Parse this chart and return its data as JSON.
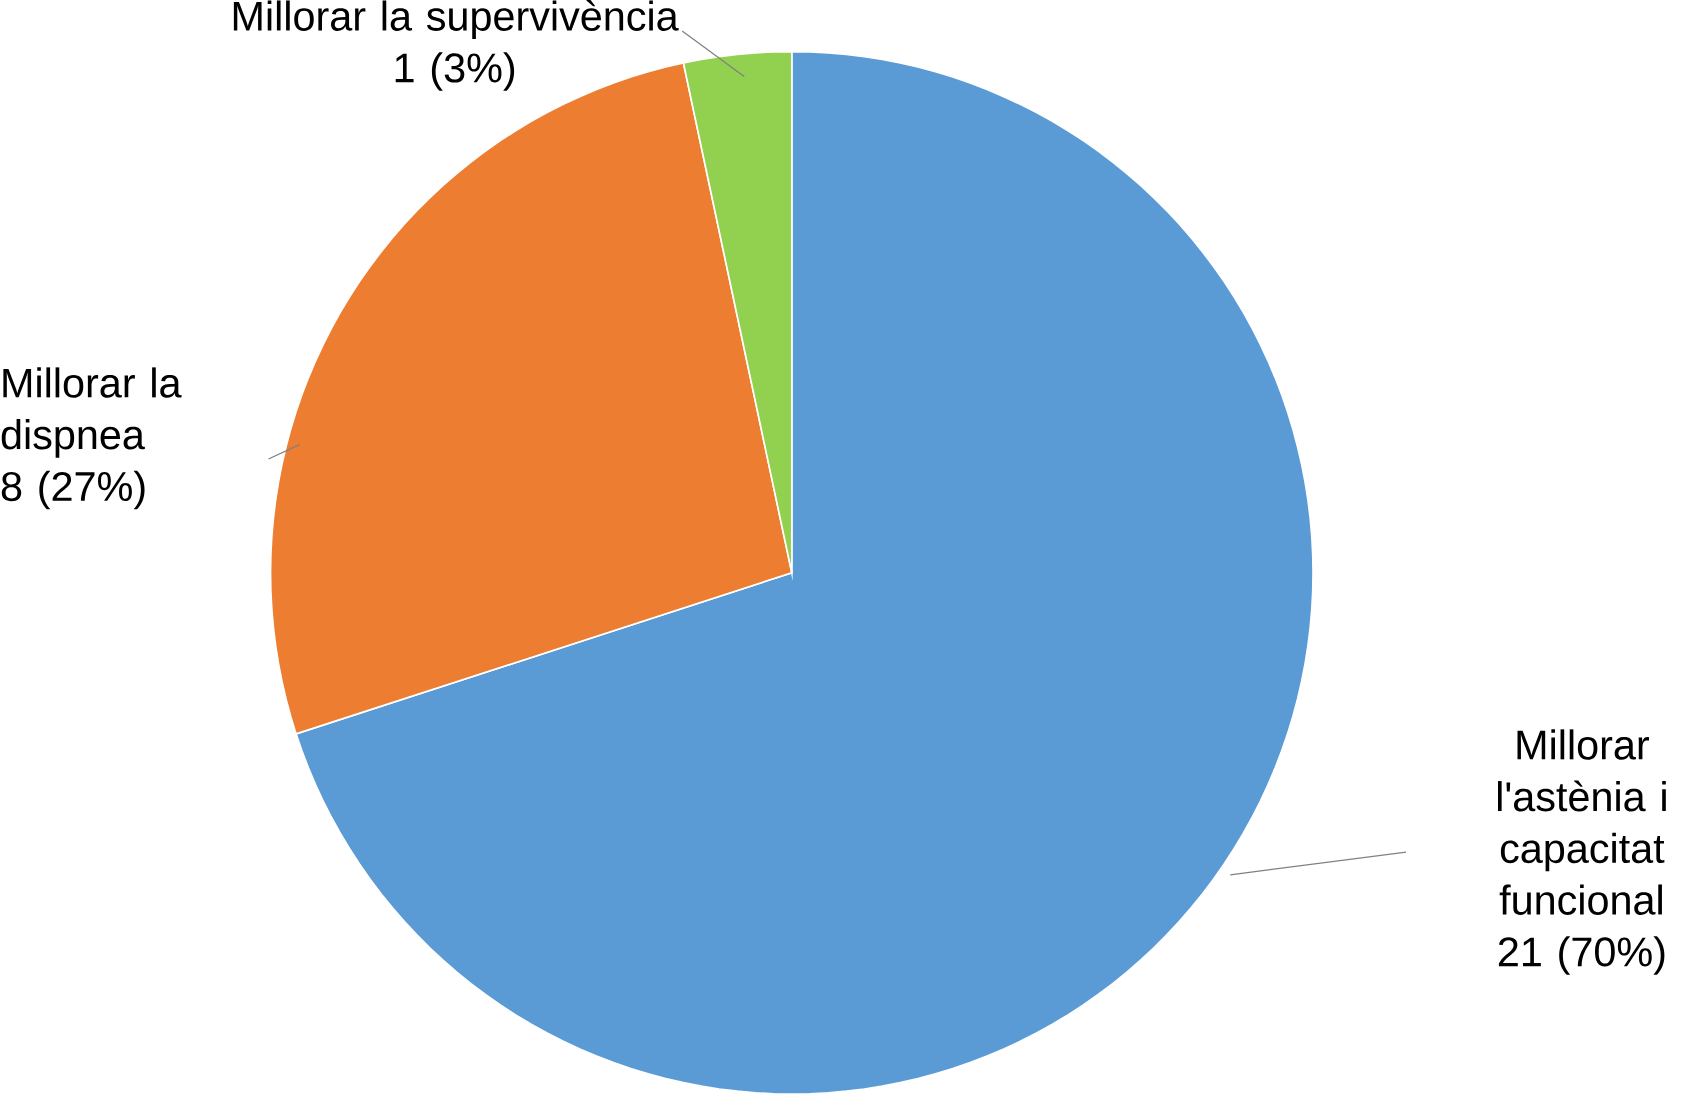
{
  "chart_data": {
    "type": "pie",
    "categories": [
      "Millorar l'astènia i capacitat funcional",
      "Millorar la dispnea",
      "Millorar la supervivència"
    ],
    "values": [
      21,
      8,
      1
    ],
    "value_labels": [
      "21 (70%)",
      "8 (27%)",
      "1 (3%)"
    ],
    "colors": [
      "#5b9bd5",
      "#ed7d31",
      "#92d050"
    ]
  }
}
